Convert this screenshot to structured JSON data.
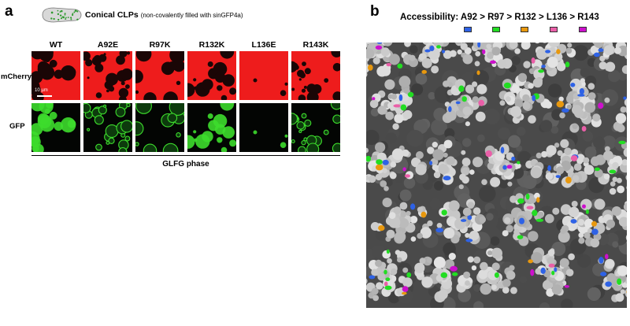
{
  "panel_a": {
    "letter": "a",
    "title": "Conical CLPs",
    "subtitle": "(non-covalently filled with sinGFP4a)",
    "columns": [
      "WT",
      "A92E",
      "R97K",
      "R132K",
      "L136E",
      "R143K"
    ],
    "rows": [
      "mCherry",
      "GFP"
    ],
    "scalebar_label": "10 µm",
    "phase_label": "GLFG phase",
    "colors": {
      "mcherry": "#ee1c1c",
      "gfp": "#3ddc2c",
      "capsule_fill": "#d8d8d8",
      "capsule_dots": "#2e9a2e"
    }
  },
  "panel_b": {
    "letter": "b",
    "title": "Accessibility: A92 > R97 > R132 > L136 > R143",
    "legend": [
      {
        "residue": "A92",
        "color": "#2e62e6"
      },
      {
        "residue": "R97",
        "color": "#22dd22"
      },
      {
        "residue": "R132",
        "color": "#e8980e"
      },
      {
        "residue": "L136",
        "color": "#ea5fa8"
      },
      {
        "residue": "R143",
        "color": "#cc10cc"
      }
    ]
  }
}
